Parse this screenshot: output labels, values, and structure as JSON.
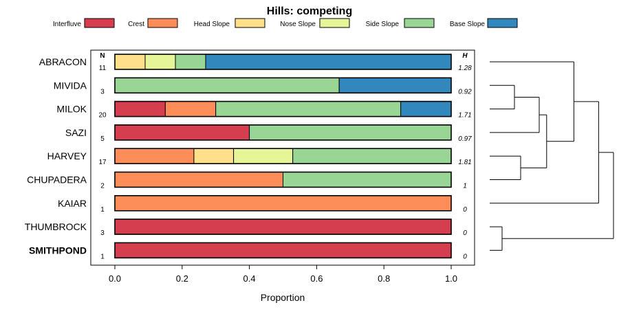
{
  "chart_data": {
    "type": "bar",
    "orientation": "horizontal",
    "stacked": true,
    "title": "Hills: competing",
    "xlabel": "Proportion",
    "ylabel": "",
    "xlim": [
      0,
      1
    ],
    "xticks": [
      "0.0",
      "0.2",
      "0.4",
      "0.6",
      "0.8",
      "1.0"
    ],
    "n_header": "N",
    "h_header": "H",
    "legend_position": "top",
    "legend": [
      {
        "name": "Interfluve",
        "color": "#d53e4f"
      },
      {
        "name": "Crest",
        "color": "#fc8d59"
      },
      {
        "name": "Head Slope",
        "color": "#fee08b"
      },
      {
        "name": "Nose Slope",
        "color": "#e6f598"
      },
      {
        "name": "Side Slope",
        "color": "#99d594"
      },
      {
        "name": "Base Slope",
        "color": "#3288bd"
      }
    ],
    "categories": [
      "ABRACON",
      "MIVIDA",
      "MILOK",
      "SAZI",
      "HARVEY",
      "CHUPADERA",
      "KAIAR",
      "THUMBROCK",
      "SMITHPOND"
    ],
    "highlighted_category": "SMITHPOND",
    "n": [
      "11",
      "3",
      "20",
      "5",
      "17",
      "2",
      "1",
      "3",
      "1"
    ],
    "h": [
      "1.28",
      "0.92",
      "1.71",
      "0.97",
      "1.81",
      "1",
      "0",
      "0",
      "0"
    ],
    "series": [
      {
        "name": "Interfluve",
        "values": [
          0,
          0,
          0.15,
          0.4,
          0,
          0,
          0,
          1.0,
          1.0
        ]
      },
      {
        "name": "Crest",
        "values": [
          0,
          0,
          0.15,
          0,
          0.235,
          0.5,
          1.0,
          0,
          0
        ]
      },
      {
        "name": "Head Slope",
        "values": [
          0.09,
          0,
          0,
          0,
          0.118,
          0,
          0,
          0,
          0
        ]
      },
      {
        "name": "Nose Slope",
        "values": [
          0.09,
          0,
          0,
          0,
          0.176,
          0,
          0,
          0,
          0
        ]
      },
      {
        "name": "Side Slope",
        "values": [
          0.09,
          0.667,
          0.55,
          0.6,
          0.471,
          0.5,
          0,
          0,
          0
        ]
      },
      {
        "name": "Base Slope",
        "values": [
          0.73,
          0.333,
          0.15,
          0,
          0,
          0,
          0,
          0,
          0
        ]
      }
    ],
    "dendrogram": {
      "leaf_order": [
        "ABRACON",
        "MIVIDA",
        "MILOK",
        "SAZI",
        "HARVEY",
        "CHUPADERA",
        "KAIAR",
        "THUMBROCK",
        "SMITHPOND"
      ],
      "merges": [
        {
          "left": "MIVIDA",
          "right": "MILOK",
          "height": 0.2
        },
        {
          "left": "HARVEY",
          "right": "CHUPADERA",
          "height": 0.25
        },
        {
          "left": "THUMBROCK",
          "right": "SMITHPOND",
          "height": 0.1
        },
        {
          "left": "MIVIDA+MILOK",
          "right": "SAZI",
          "height": 0.4
        },
        {
          "left": "MIVIDA+MILOK+SAZI",
          "right": "HARVEY+CHUPADERA",
          "height": 0.46
        },
        {
          "left": "ABRACON",
          "right": "MIVIDA+MILOK+SAZI+HARVEY+CHUPADERA",
          "height": 0.68
        },
        {
          "left": "ABRACON+MIVIDA+MILOK+SAZI+HARVEY+CHUPADERA",
          "right": "KAIAR",
          "height": 0.88
        },
        {
          "left": "ABRACON+MIVIDA+MILOK+SAZI+HARVEY+CHUPADERA+KAIAR",
          "right": "THUMBROCK+SMITHPOND",
          "height": 1.0
        }
      ]
    }
  }
}
